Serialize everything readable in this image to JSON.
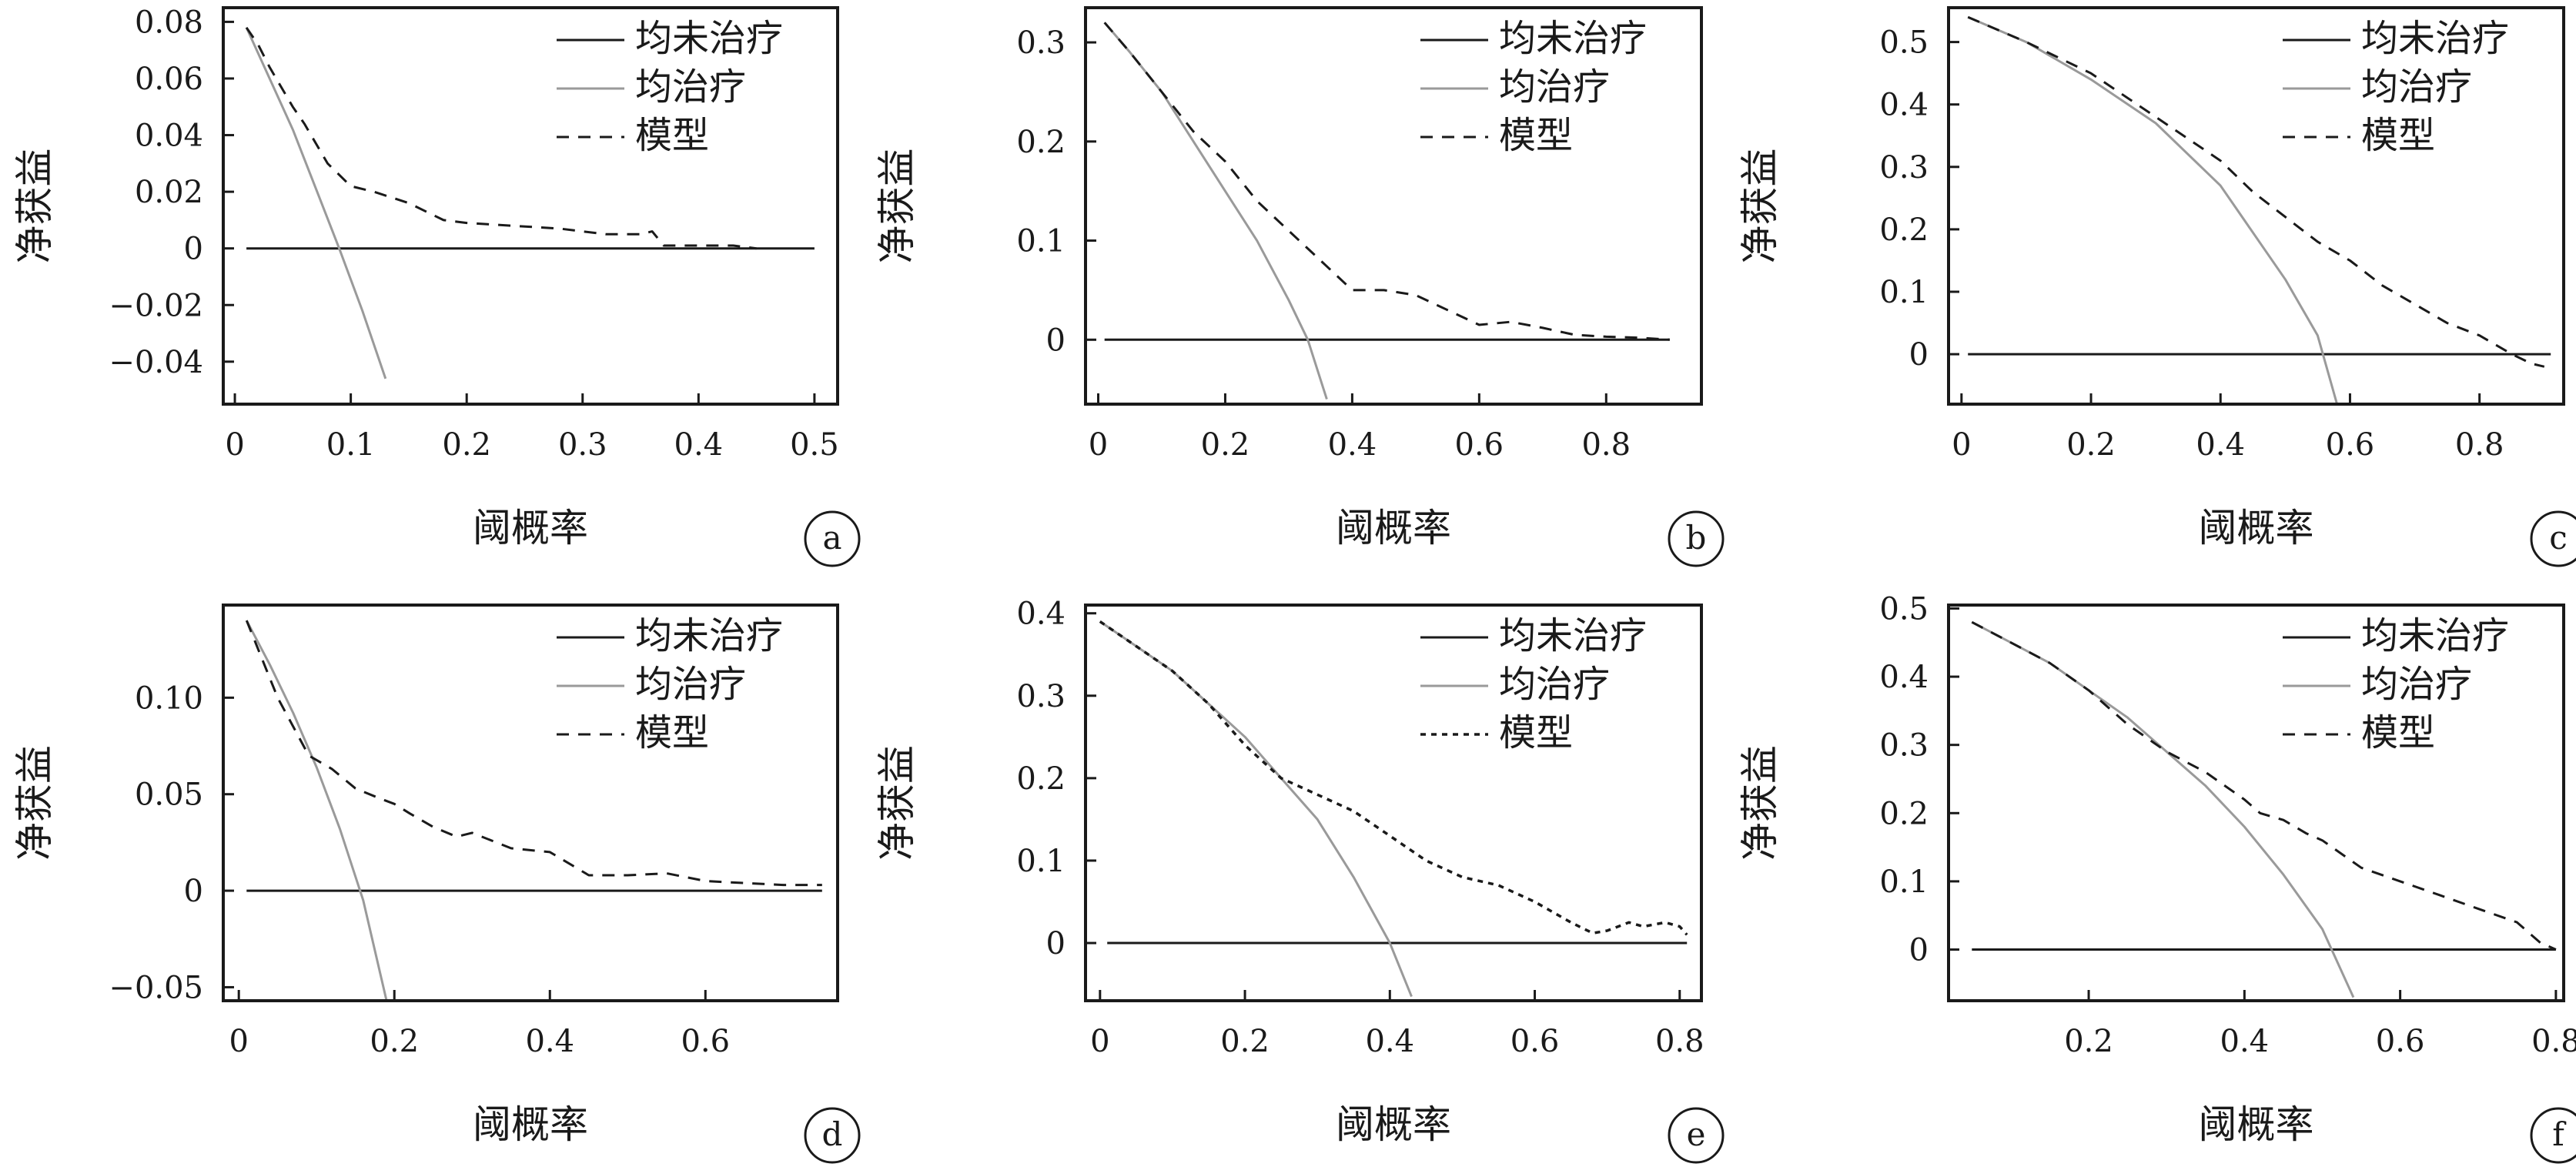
{
  "legend_labels": [
    "均未治疗",
    "均治疗",
    "模型"
  ],
  "colors": {
    "none": "#1a1a1a",
    "all": "#9a9a9a",
    "model": "#1a1a1a"
  },
  "chart_data": [
    {
      "id": "a",
      "type": "line",
      "xlabel": "阈概率",
      "ylabel": "净获益",
      "xlim": [
        -0.01,
        0.52
      ],
      "ylim": [
        -0.055,
        0.085
      ],
      "xticks": [
        0,
        0.1,
        0.2,
        0.3,
        0.4,
        0.5
      ],
      "yticks": [
        -0.04,
        -0.02,
        0,
        0.02,
        0.04,
        0.06,
        0.08
      ],
      "ytick_labels": [
        "−0.04",
        "−0.02",
        "0",
        "0.02",
        "0.04",
        "0.06",
        "0.08"
      ],
      "series": [
        {
          "name": "均未治疗",
          "style": "solid",
          "x": [
            0.01,
            0.5
          ],
          "y": [
            0,
            0
          ]
        },
        {
          "name": "均治疗",
          "style": "gray",
          "x": [
            0.01,
            0.03,
            0.05,
            0.07,
            0.09,
            0.11,
            0.13
          ],
          "y": [
            0.078,
            0.06,
            0.042,
            0.021,
            0.0,
            -0.022,
            -0.046
          ]
        },
        {
          "name": "模型",
          "style": "dashed",
          "x": [
            0.01,
            0.02,
            0.03,
            0.05,
            0.06,
            0.07,
            0.08,
            0.1,
            0.12,
            0.15,
            0.18,
            0.2,
            0.24,
            0.28,
            0.32,
            0.35,
            0.36,
            0.37,
            0.4,
            0.43,
            0.45
          ],
          "y": [
            0.078,
            0.072,
            0.064,
            0.05,
            0.044,
            0.037,
            0.03,
            0.022,
            0.02,
            0.016,
            0.01,
            0.009,
            0.008,
            0.007,
            0.005,
            0.005,
            0.006,
            0.001,
            0.001,
            0.001,
            0.0
          ]
        }
      ]
    },
    {
      "id": "b",
      "type": "line",
      "xlabel": "阈概率",
      "ylabel": "净获益",
      "xlim": [
        -0.02,
        0.95
      ],
      "ylim": [
        -0.065,
        0.335
      ],
      "xticks": [
        0,
        0.2,
        0.4,
        0.6,
        0.8
      ],
      "yticks": [
        0,
        0.1,
        0.2,
        0.3
      ],
      "ytick_labels": [
        "0",
        "0.1",
        "0.2",
        "0.3"
      ],
      "series": [
        {
          "name": "均未治疗",
          "style": "solid",
          "x": [
            0.01,
            0.9
          ],
          "y": [
            0,
            0
          ]
        },
        {
          "name": "均治疗",
          "style": "gray",
          "x": [
            0.01,
            0.05,
            0.1,
            0.15,
            0.2,
            0.25,
            0.3,
            0.33,
            0.36
          ],
          "y": [
            0.32,
            0.29,
            0.25,
            0.2,
            0.15,
            0.1,
            0.04,
            0.0,
            -0.06
          ]
        },
        {
          "name": "模型",
          "style": "dashed",
          "x": [
            0.01,
            0.05,
            0.1,
            0.15,
            0.2,
            0.25,
            0.3,
            0.35,
            0.4,
            0.45,
            0.5,
            0.55,
            0.6,
            0.65,
            0.7,
            0.75,
            0.8,
            0.85,
            0.9
          ],
          "y": [
            0.32,
            0.29,
            0.25,
            0.21,
            0.18,
            0.14,
            0.11,
            0.08,
            0.05,
            0.05,
            0.045,
            0.03,
            0.015,
            0.018,
            0.012,
            0.005,
            0.003,
            0.002,
            0.0
          ]
        }
      ]
    },
    {
      "id": "c",
      "type": "line",
      "xlabel": "阈概率",
      "ylabel": "净获益",
      "xlim": [
        -0.02,
        0.93
      ],
      "ylim": [
        -0.08,
        0.555
      ],
      "xticks": [
        0,
        0.2,
        0.4,
        0.6,
        0.8
      ],
      "yticks": [
        0,
        0.1,
        0.2,
        0.3,
        0.4,
        0.5
      ],
      "ytick_labels": [
        "0",
        "0.1",
        "0.2",
        "0.3",
        "0.4",
        "0.5"
      ],
      "series": [
        {
          "name": "均未治疗",
          "style": "solid",
          "x": [
            0.01,
            0.91
          ],
          "y": [
            0,
            0
          ]
        },
        {
          "name": "均治疗",
          "style": "gray",
          "x": [
            0.01,
            0.1,
            0.2,
            0.3,
            0.4,
            0.5,
            0.55,
            0.58
          ],
          "y": [
            0.54,
            0.5,
            0.44,
            0.37,
            0.27,
            0.12,
            0.03,
            -0.08
          ]
        },
        {
          "name": "模型",
          "style": "dashed",
          "x": [
            0.01,
            0.1,
            0.2,
            0.3,
            0.4,
            0.45,
            0.5,
            0.55,
            0.6,
            0.65,
            0.7,
            0.75,
            0.8,
            0.85,
            0.88,
            0.9
          ],
          "y": [
            0.54,
            0.5,
            0.45,
            0.38,
            0.31,
            0.26,
            0.22,
            0.18,
            0.15,
            0.11,
            0.08,
            0.05,
            0.03,
            0.0,
            -0.015,
            -0.02
          ]
        }
      ]
    },
    {
      "id": "d",
      "type": "line",
      "xlabel": "阈概率",
      "ylabel": "净获益",
      "xlim": [
        -0.02,
        0.77
      ],
      "ylim": [
        -0.057,
        0.148
      ],
      "xticks": [
        0,
        0.2,
        0.4,
        0.6
      ],
      "yticks": [
        -0.05,
        0,
        0.05,
        0.1
      ],
      "ytick_labels": [
        "−0.05",
        "0",
        "0.05",
        "0.10"
      ],
      "series": [
        {
          "name": "均未治疗",
          "style": "solid",
          "x": [
            0.01,
            0.75
          ],
          "y": [
            0,
            0
          ]
        },
        {
          "name": "均治疗",
          "style": "gray",
          "x": [
            0.01,
            0.04,
            0.07,
            0.1,
            0.13,
            0.16,
            0.19
          ],
          "y": [
            0.14,
            0.117,
            0.092,
            0.064,
            0.032,
            -0.005,
            -0.057
          ]
        },
        {
          "name": "模型",
          "style": "dashed",
          "x": [
            0.01,
            0.03,
            0.05,
            0.07,
            0.09,
            0.12,
            0.15,
            0.18,
            0.2,
            0.22,
            0.25,
            0.28,
            0.3,
            0.35,
            0.4,
            0.45,
            0.5,
            0.55,
            0.6,
            0.65,
            0.7,
            0.75
          ],
          "y": [
            0.14,
            0.12,
            0.1,
            0.085,
            0.07,
            0.063,
            0.053,
            0.048,
            0.045,
            0.04,
            0.033,
            0.028,
            0.03,
            0.022,
            0.02,
            0.008,
            0.008,
            0.009,
            0.005,
            0.004,
            0.003,
            0.003
          ]
        }
      ]
    },
    {
      "id": "e",
      "type": "line",
      "xlabel": "阈概率",
      "ylabel": "净获益",
      "xlim": [
        -0.02,
        0.83
      ],
      "ylim": [
        -0.07,
        0.41
      ],
      "xticks": [
        0,
        0.2,
        0.4,
        0.6,
        0.8
      ],
      "yticks": [
        0,
        0.1,
        0.2,
        0.3,
        0.4
      ],
      "ytick_labels": [
        "0",
        "0.1",
        "0.2",
        "0.3",
        "0.4"
      ],
      "series": [
        {
          "name": "均未治疗",
          "style": "solid",
          "x": [
            0.01,
            0.81
          ],
          "y": [
            0,
            0
          ]
        },
        {
          "name": "均治疗",
          "style": "gray",
          "x": [
            0.0,
            0.05,
            0.1,
            0.15,
            0.2,
            0.25,
            0.3,
            0.35,
            0.4,
            0.43
          ],
          "y": [
            0.39,
            0.36,
            0.33,
            0.29,
            0.25,
            0.2,
            0.15,
            0.08,
            0.0,
            -0.065
          ]
        },
        {
          "name": "模型",
          "style": "dotted",
          "x": [
            0.0,
            0.05,
            0.1,
            0.15,
            0.2,
            0.25,
            0.3,
            0.35,
            0.4,
            0.45,
            0.5,
            0.55,
            0.6,
            0.65,
            0.68,
            0.7,
            0.73,
            0.75,
            0.78,
            0.8,
            0.81
          ],
          "y": [
            0.39,
            0.36,
            0.33,
            0.29,
            0.24,
            0.2,
            0.18,
            0.16,
            0.13,
            0.1,
            0.08,
            0.07,
            0.05,
            0.025,
            0.012,
            0.015,
            0.025,
            0.02,
            0.025,
            0.02,
            0.01
          ]
        }
      ]
    },
    {
      "id": "f",
      "type": "line",
      "xlabel": "阈概率",
      "ylabel": "净获益",
      "xlim": [
        0.02,
        0.81
      ],
      "ylim": [
        -0.075,
        0.505
      ],
      "xticks": [
        0.2,
        0.4,
        0.6,
        0.8
      ],
      "yticks": [
        0,
        0.1,
        0.2,
        0.3,
        0.4,
        0.5
      ],
      "ytick_labels": [
        "0",
        "0.1",
        "0.2",
        "0.3",
        "0.4",
        "0.5"
      ],
      "series": [
        {
          "name": "均未治疗",
          "style": "solid",
          "x": [
            0.05,
            0.8
          ],
          "y": [
            0,
            0
          ]
        },
        {
          "name": "均治疗",
          "style": "gray",
          "x": [
            0.05,
            0.1,
            0.15,
            0.2,
            0.25,
            0.3,
            0.35,
            0.4,
            0.45,
            0.5,
            0.54
          ],
          "y": [
            0.48,
            0.45,
            0.42,
            0.38,
            0.34,
            0.29,
            0.24,
            0.18,
            0.11,
            0.03,
            -0.07
          ]
        },
        {
          "name": "模型",
          "style": "dashed",
          "x": [
            0.05,
            0.1,
            0.15,
            0.2,
            0.25,
            0.3,
            0.35,
            0.4,
            0.42,
            0.45,
            0.48,
            0.5,
            0.55,
            0.6,
            0.65,
            0.7,
            0.75,
            0.78,
            0.8
          ],
          "y": [
            0.48,
            0.45,
            0.42,
            0.38,
            0.33,
            0.29,
            0.26,
            0.22,
            0.2,
            0.19,
            0.17,
            0.16,
            0.12,
            0.1,
            0.08,
            0.06,
            0.04,
            0.01,
            0.0
          ]
        }
      ]
    }
  ]
}
